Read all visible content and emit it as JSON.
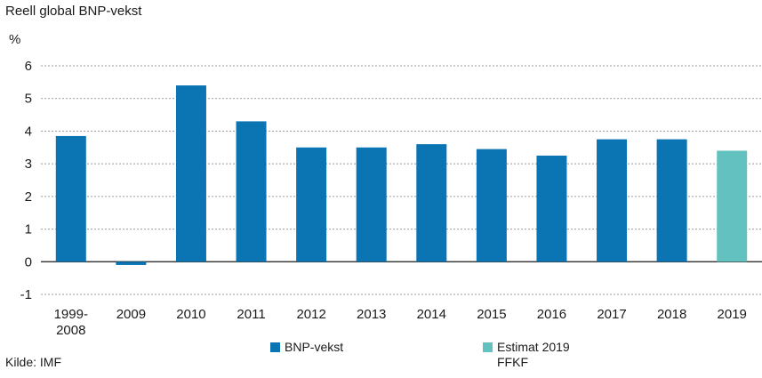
{
  "title": "Reell global BNP-vekst",
  "unit": "%",
  "source": "Kilde: IMF",
  "colors": {
    "actual": "#0b74b3",
    "estimate": "#63c2c0",
    "grid": "#9a9a9a",
    "axis": "#1a1a1a"
  },
  "legend": [
    {
      "label": "BNP-vekst",
      "color": "#0b74b3"
    },
    {
      "label": "Estimat 2019\nFFKF",
      "color": "#63c2c0"
    }
  ],
  "chart_data": {
    "type": "bar",
    "title": "Reell global BNP-vekst",
    "ylabel": "%",
    "xlabel": "",
    "ylim": [
      -1,
      6
    ],
    "yticks": [
      -1,
      0,
      1,
      2,
      3,
      4,
      5,
      6
    ],
    "grid": true,
    "categories": [
      "1999-\n2008",
      "2009",
      "2010",
      "2011",
      "2012",
      "2013",
      "2014",
      "2015",
      "2016",
      "2017",
      "2018",
      "2019"
    ],
    "series": [
      {
        "name": "BNP-vekst",
        "values": [
          3.85,
          -0.1,
          5.4,
          4.3,
          3.5,
          3.5,
          3.6,
          3.45,
          3.25,
          3.75,
          3.75,
          null
        ]
      },
      {
        "name": "Estimat 2019 FFKF",
        "values": [
          null,
          null,
          null,
          null,
          null,
          null,
          null,
          null,
          null,
          null,
          null,
          3.4
        ]
      }
    ]
  }
}
